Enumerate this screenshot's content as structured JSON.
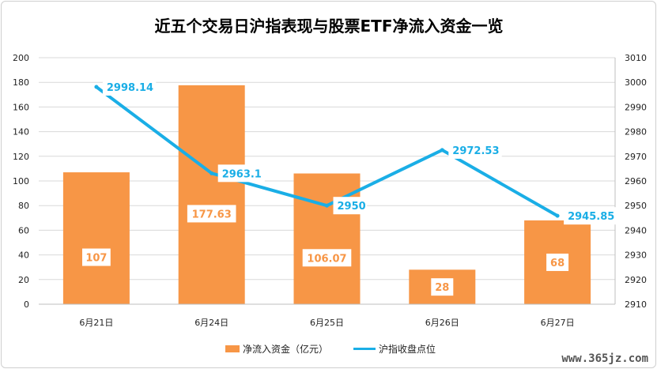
{
  "chart_data": {
    "type": "bar",
    "title": "近五个交易日沪指表现与股票ETF净流入资金一览",
    "categories": [
      "6月21日",
      "6月24日",
      "6月25日",
      "6月26日",
      "6月27日"
    ],
    "series": [
      {
        "name": "净流入资金（亿元）",
        "type": "bar",
        "axis": "left",
        "values": [
          107,
          177.63,
          106.07,
          28,
          68
        ],
        "labels": [
          "107",
          "177.63",
          "106.07",
          "28",
          "68"
        ],
        "color": "#f79646"
      },
      {
        "name": "沪指收盘点位",
        "type": "line",
        "axis": "right",
        "values": [
          2998.14,
          2963.1,
          2950,
          2972.53,
          2945.85
        ],
        "labels": [
          "2998.14",
          "2963.1",
          "2950",
          "2972.53",
          "2945.85"
        ],
        "color": "#1aaee6"
      }
    ],
    "y_left": {
      "min": 0,
      "max": 200,
      "ticks": [
        "0",
        "20",
        "40",
        "60",
        "80",
        "100",
        "120",
        "140",
        "160",
        "180",
        "200"
      ]
    },
    "y_right": {
      "min": 2910,
      "max": 3010,
      "ticks": [
        "2910",
        "2920",
        "2930",
        "2940",
        "2950",
        "2960",
        "2970",
        "2980",
        "2990",
        "3000",
        "3010"
      ]
    },
    "grid": true,
    "legend_position": "bottom"
  },
  "watermark": "www.365jz.com"
}
